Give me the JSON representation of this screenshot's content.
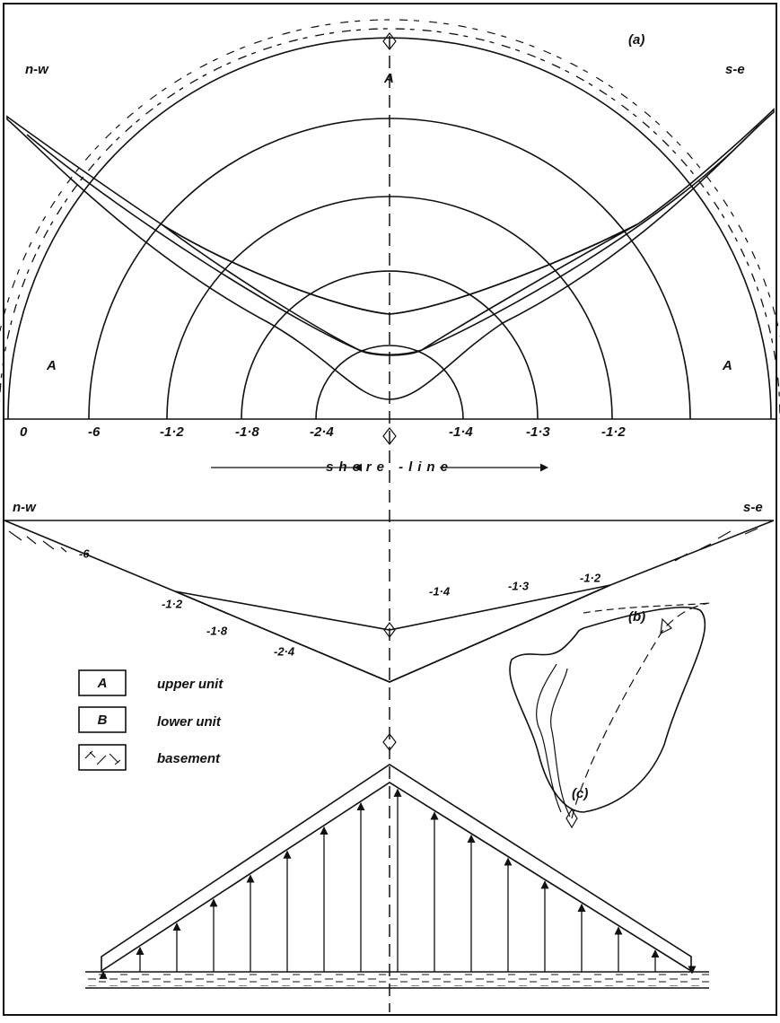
{
  "panel_a": {
    "label": "(a)",
    "corner_labels": [
      "n-w",
      "s-e"
    ],
    "top_label": "A",
    "side_labels": [
      "A",
      "A"
    ],
    "scale_labels": [
      "0",
      "-6",
      "-1·2",
      "-1·8",
      "-2·4",
      "-1·4",
      "-1·3",
      "-1·2"
    ],
    "shore_line": "shore -line"
  },
  "panel_b": {
    "label": "(b)",
    "corner_labels": [
      "n-w",
      "s-e"
    ],
    "depth_labels": [
      "-6",
      "-1·2",
      "-1·8",
      "-2·4",
      "-1·4",
      "-1·3",
      "-1·2"
    ]
  },
  "legend": [
    {
      "symbol": "A",
      "text": "upper unit"
    },
    {
      "symbol": "B",
      "text": "lower unit"
    },
    {
      "text": "basement"
    }
  ],
  "panel_c": {
    "label": "(c)"
  }
}
